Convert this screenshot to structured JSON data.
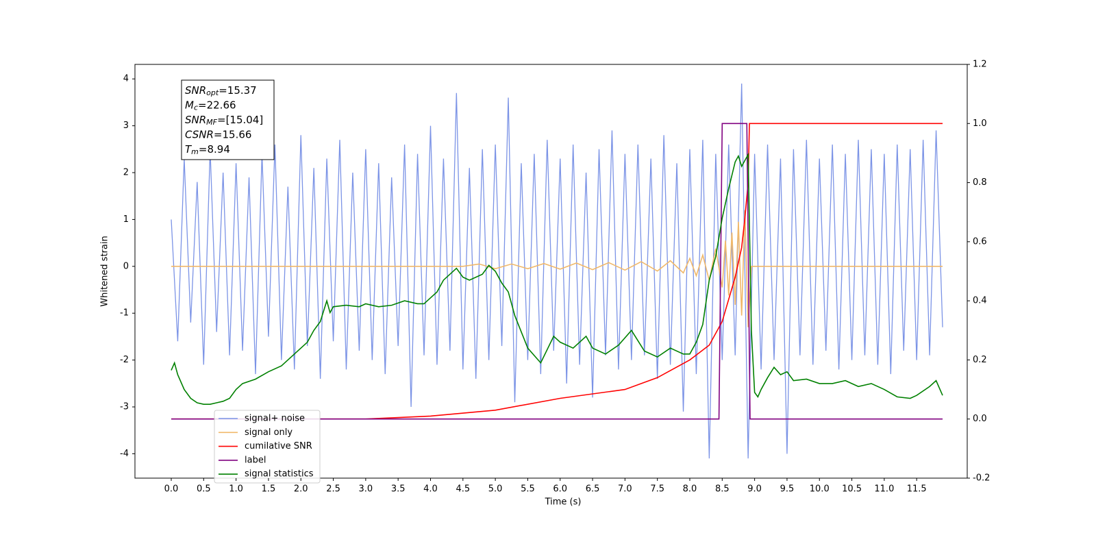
{
  "chart_data": {
    "type": "line",
    "xlabel": "Time (s)",
    "ylabel": "Whitened strain",
    "xlim": [
      -0.56,
      12.28
    ],
    "ylim": [
      -4.52,
      4.31
    ],
    "y2lim": [
      -0.2,
      1.2
    ],
    "xticks": [
      {
        "value": 0,
        "label": "0.0"
      },
      0.5,
      {
        "value": 1,
        "label": "1.0"
      },
      1.5,
      {
        "value": 2,
        "label": "2.0"
      },
      2.5,
      {
        "value": 3,
        "label": "3.0"
      },
      3.5,
      {
        "value": 4,
        "label": "4.0"
      },
      4.5,
      {
        "value": 5,
        "label": "5.0"
      },
      5.5,
      {
        "value": 6,
        "label": "6.0"
      },
      6.5,
      {
        "value": 7,
        "label": "7.0"
      },
      7.5,
      {
        "value": 8,
        "label": "8.0"
      },
      8.5,
      {
        "value": 9,
        "label": "9.0"
      },
      9.5,
      {
        "value": 10,
        "label": "10.0"
      },
      10.5,
      {
        "value": 11,
        "label": "11.0"
      },
      11.5
    ],
    "yticks": [
      -4,
      -3,
      -2,
      -1,
      0,
      1,
      2,
      3,
      4
    ],
    "y2ticks": [
      -0.2,
      {
        "value": 0,
        "label": "0.0"
      },
      0.2,
      0.4,
      0.6,
      0.8,
      {
        "value": 1,
        "label": "1.0"
      },
      1.2
    ],
    "annotations": [
      {
        "name": "SNR",
        "sub": "opt",
        "text": "=15.37"
      },
      {
        "name": "M",
        "sub": "c",
        "text": "=22.66"
      },
      {
        "name": "SNR",
        "sub": "MF",
        "text": "=[15.04]"
      },
      {
        "name": "CSNR",
        "sub": "",
        "text": "=15.66"
      },
      {
        "name": "T",
        "sub": "m",
        "text": "=8.94"
      }
    ],
    "series": [
      {
        "name": "signal+ noise",
        "color": "#7b93e6",
        "axis": "y",
        "x": [
          0.0,
          0.1,
          0.2,
          0.3,
          0.4,
          0.5,
          0.6,
          0.7,
          0.8,
          0.9,
          1.0,
          1.1,
          1.2,
          1.3,
          1.4,
          1.5,
          1.6,
          1.7,
          1.8,
          1.9,
          2.0,
          2.1,
          2.2,
          2.3,
          2.4,
          2.5,
          2.6,
          2.7,
          2.8,
          2.9,
          3.0,
          3.1,
          3.2,
          3.3,
          3.4,
          3.5,
          3.6,
          3.7,
          3.8,
          3.9,
          4.0,
          4.1,
          4.2,
          4.3,
          4.4,
          4.5,
          4.6,
          4.7,
          4.8,
          4.9,
          5.0,
          5.1,
          5.2,
          5.3,
          5.4,
          5.5,
          5.6,
          5.7,
          5.8,
          5.9,
          6.0,
          6.1,
          6.2,
          6.3,
          6.4,
          6.5,
          6.6,
          6.7,
          6.8,
          6.9,
          7.0,
          7.1,
          7.2,
          7.3,
          7.4,
          7.5,
          7.6,
          7.7,
          7.8,
          7.9,
          8.0,
          8.1,
          8.2,
          8.3,
          8.4,
          8.5,
          8.6,
          8.7,
          8.8,
          8.9,
          9.0,
          9.1,
          9.2,
          9.3,
          9.4,
          9.5,
          9.6,
          9.7,
          9.8,
          9.9,
          10.0,
          10.1,
          10.2,
          10.3,
          10.4,
          10.5,
          10.6,
          10.7,
          10.8,
          10.9,
          11.0,
          11.1,
          11.2,
          11.3,
          11.4,
          11.5,
          11.6,
          11.7,
          11.8,
          11.9
        ],
        "values": [
          1.0,
          -1.6,
          2.3,
          -1.2,
          1.8,
          -2.1,
          2.5,
          -1.4,
          2.0,
          -1.9,
          2.2,
          -1.8,
          1.9,
          -2.3,
          2.4,
          -1.5,
          2.6,
          -2.0,
          1.7,
          -2.2,
          2.8,
          -1.7,
          2.1,
          -2.4,
          2.3,
          -1.6,
          2.7,
          -2.2,
          2.0,
          -1.8,
          2.5,
          -2.0,
          2.2,
          -2.3,
          1.9,
          -1.7,
          2.6,
          -3.0,
          2.4,
          -1.9,
          3.0,
          -2.1,
          2.3,
          -1.8,
          3.7,
          -2.2,
          2.1,
          -2.4,
          2.5,
          -2.0,
          2.6,
          -1.7,
          3.6,
          -2.9,
          2.2,
          -2.0,
          2.4,
          -2.3,
          2.7,
          -1.8,
          2.3,
          -2.5,
          2.6,
          -2.1,
          2.0,
          -2.8,
          2.5,
          -1.9,
          2.9,
          -2.2,
          2.4,
          -2.0,
          2.6,
          -1.9,
          2.3,
          -2.4,
          2.8,
          -2.1,
          2.2,
          -3.1,
          2.5,
          -2.3,
          2.7,
          -4.1,
          2.4,
          -2.0,
          2.6,
          -1.9,
          3.9,
          -4.1,
          2.4,
          -2.2,
          2.6,
          -2.0,
          2.3,
          -4.0,
          2.5,
          -1.9,
          2.7,
          -2.1,
          2.3,
          -1.8,
          2.6,
          -2.2,
          2.4,
          -2.0,
          2.7,
          -1.9,
          2.5,
          -2.1,
          2.4,
          -2.3,
          2.6,
          -1.8,
          2.5,
          -2.0,
          2.7,
          -1.9,
          2.9,
          -1.3
        ]
      },
      {
        "name": "signal only",
        "color": "#f0b86a",
        "axis": "y",
        "x": [
          0,
          4.5,
          4.75,
          5.0,
          5.25,
          5.5,
          5.75,
          6.0,
          6.25,
          6.5,
          6.75,
          7.0,
          7.25,
          7.5,
          7.7,
          7.9,
          8.0,
          8.1,
          8.2,
          8.3,
          8.4,
          8.5,
          8.55,
          8.6,
          8.65,
          8.7,
          8.75,
          8.8,
          8.85,
          8.9,
          8.95,
          11.9
        ],
        "values": [
          0,
          0,
          0.05,
          -0.05,
          0.05,
          -0.05,
          0.06,
          -0.06,
          0.07,
          -0.07,
          0.08,
          -0.08,
          0.1,
          -0.1,
          0.12,
          -0.14,
          0.17,
          -0.2,
          0.24,
          -0.3,
          0.38,
          -0.45,
          0.55,
          -0.62,
          0.72,
          -0.82,
          0.95,
          -1.05,
          1.2,
          -1.3,
          0,
          0
        ]
      },
      {
        "name": "cumilative SNR",
        "color": "#ff0000",
        "axis": "y2",
        "x": [
          0,
          3,
          4,
          5,
          6,
          7,
          7.5,
          8,
          8.3,
          8.5,
          8.7,
          8.8,
          8.85,
          8.9,
          8.92,
          11.9
        ],
        "values": [
          0,
          0,
          0.01,
          0.03,
          0.07,
          0.1,
          0.14,
          0.2,
          0.25,
          0.33,
          0.48,
          0.58,
          0.68,
          0.8,
          1.0,
          1.0
        ]
      },
      {
        "name": "label",
        "color": "#800080",
        "axis": "y2",
        "x": [
          0,
          8.45,
          8.5,
          8.88,
          8.93,
          11.9
        ],
        "values": [
          0,
          0,
          1,
          1,
          0,
          0
        ]
      },
      {
        "name": "signal statistics",
        "color": "#008000",
        "axis": "y2",
        "x": [
          0,
          0.05,
          0.1,
          0.2,
          0.3,
          0.4,
          0.5,
          0.6,
          0.7,
          0.8,
          0.9,
          1.0,
          1.1,
          1.3,
          1.5,
          1.7,
          1.8,
          1.9,
          2.0,
          2.1,
          2.2,
          2.3,
          2.4,
          2.45,
          2.5,
          2.7,
          2.9,
          3.0,
          3.2,
          3.4,
          3.6,
          3.8,
          3.9,
          4.0,
          4.1,
          4.2,
          4.4,
          4.5,
          4.6,
          4.8,
          4.9,
          5.0,
          5.1,
          5.2,
          5.3,
          5.5,
          5.7,
          5.9,
          6.0,
          6.2,
          6.4,
          6.5,
          6.7,
          6.9,
          7.1,
          7.3,
          7.5,
          7.7,
          7.9,
          8.0,
          8.1,
          8.2,
          8.3,
          8.4,
          8.5,
          8.6,
          8.7,
          8.75,
          8.8,
          8.9,
          8.95,
          9.0,
          9.05,
          9.1,
          9.2,
          9.3,
          9.4,
          9.5,
          9.6,
          9.8,
          10.0,
          10.2,
          10.4,
          10.6,
          10.8,
          11.0,
          11.2,
          11.4,
          11.5,
          11.7,
          11.8,
          11.9
        ],
        "values": [
          0.165,
          0.19,
          0.15,
          0.1,
          0.07,
          0.055,
          0.05,
          0.05,
          0.055,
          0.06,
          0.07,
          0.1,
          0.12,
          0.135,
          0.16,
          0.18,
          0.2,
          0.22,
          0.24,
          0.26,
          0.3,
          0.33,
          0.4,
          0.36,
          0.38,
          0.385,
          0.38,
          0.39,
          0.38,
          0.385,
          0.4,
          0.39,
          0.39,
          0.41,
          0.43,
          0.47,
          0.51,
          0.48,
          0.47,
          0.49,
          0.52,
          0.5,
          0.46,
          0.43,
          0.35,
          0.24,
          0.19,
          0.28,
          0.26,
          0.24,
          0.28,
          0.24,
          0.22,
          0.25,
          0.3,
          0.23,
          0.21,
          0.24,
          0.22,
          0.22,
          0.26,
          0.32,
          0.47,
          0.55,
          0.68,
          0.78,
          0.87,
          0.89,
          0.855,
          0.895,
          0.3,
          0.09,
          0.075,
          0.1,
          0.14,
          0.175,
          0.15,
          0.16,
          0.13,
          0.135,
          0.12,
          0.12,
          0.13,
          0.11,
          0.12,
          0.1,
          0.075,
          0.07,
          0.08,
          0.11,
          0.13,
          0.08
        ]
      }
    ]
  }
}
